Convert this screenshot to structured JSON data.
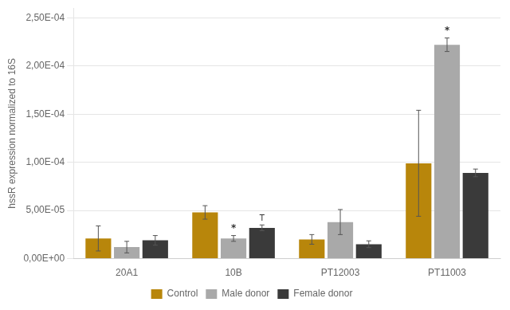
{
  "chart_data": {
    "type": "bar",
    "categories": [
      "20A1",
      "10B",
      "PT12003",
      "PT11003"
    ],
    "series": [
      {
        "name": "Control",
        "color": "#B8860B",
        "values": [
          2.1e-05,
          4.8e-05,
          2e-05,
          9.9e-05
        ],
        "errors": [
          1.3e-05,
          7e-06,
          5e-06,
          5.5e-05
        ]
      },
      {
        "name": "Male donor",
        "color": "#A9A9A9",
        "values": [
          1.2e-05,
          2.1e-05,
          3.8e-05,
          0.000222
        ],
        "errors": [
          6e-06,
          3e-06,
          1.3e-05,
          7e-06
        ]
      },
      {
        "name": "Female donor",
        "color": "#3a3a3a",
        "values": [
          1.9e-05,
          3.2e-05,
          1.5e-05,
          8.9e-05
        ],
        "errors": [
          5e-06,
          3e-06,
          3.5e-06,
          4e-06
        ]
      }
    ],
    "ylabel": "hssR expression normalized to 16S",
    "ylim": [
      0,
      0.00026
    ],
    "yticks": [
      {
        "value": 0,
        "label": "0,00E+00"
      },
      {
        "value": 5e-05,
        "label": "5,00E-05"
      },
      {
        "value": 0.0001,
        "label": "1,00E-04"
      },
      {
        "value": 0.00015,
        "label": "1,50E-04"
      },
      {
        "value": 0.0002,
        "label": "2,00E-04"
      },
      {
        "value": 0.00025,
        "label": "2,50E-04"
      }
    ],
    "grid": true,
    "legend": "bottom",
    "annotations": [
      {
        "text": "*",
        "series": "Male donor",
        "category": "10B"
      },
      {
        "text": "T",
        "series": "Female donor",
        "category": "10B"
      },
      {
        "text": "*",
        "series": "Male donor",
        "category": "PT11003"
      }
    ]
  }
}
